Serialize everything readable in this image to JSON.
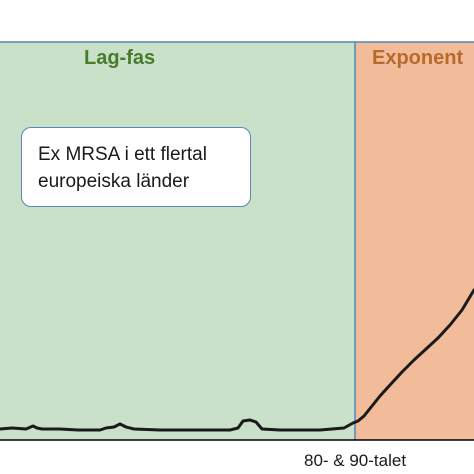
{
  "phases": [
    {
      "label": "Lag-fas",
      "fill": "#c8e1c8",
      "text_color": "#4a7a2c"
    },
    {
      "label": "Exponent",
      "fill": "#f2bc9b",
      "text_color": "#b86a2c"
    }
  ],
  "note": {
    "line1": "Ex MRSA i ett flertal",
    "line2": "europeiska länder"
  },
  "axis_caption": "80- & 90-talet",
  "colors": {
    "border": "#4f87b8",
    "curve": "#1a1a1a",
    "axis": "#000000"
  }
}
